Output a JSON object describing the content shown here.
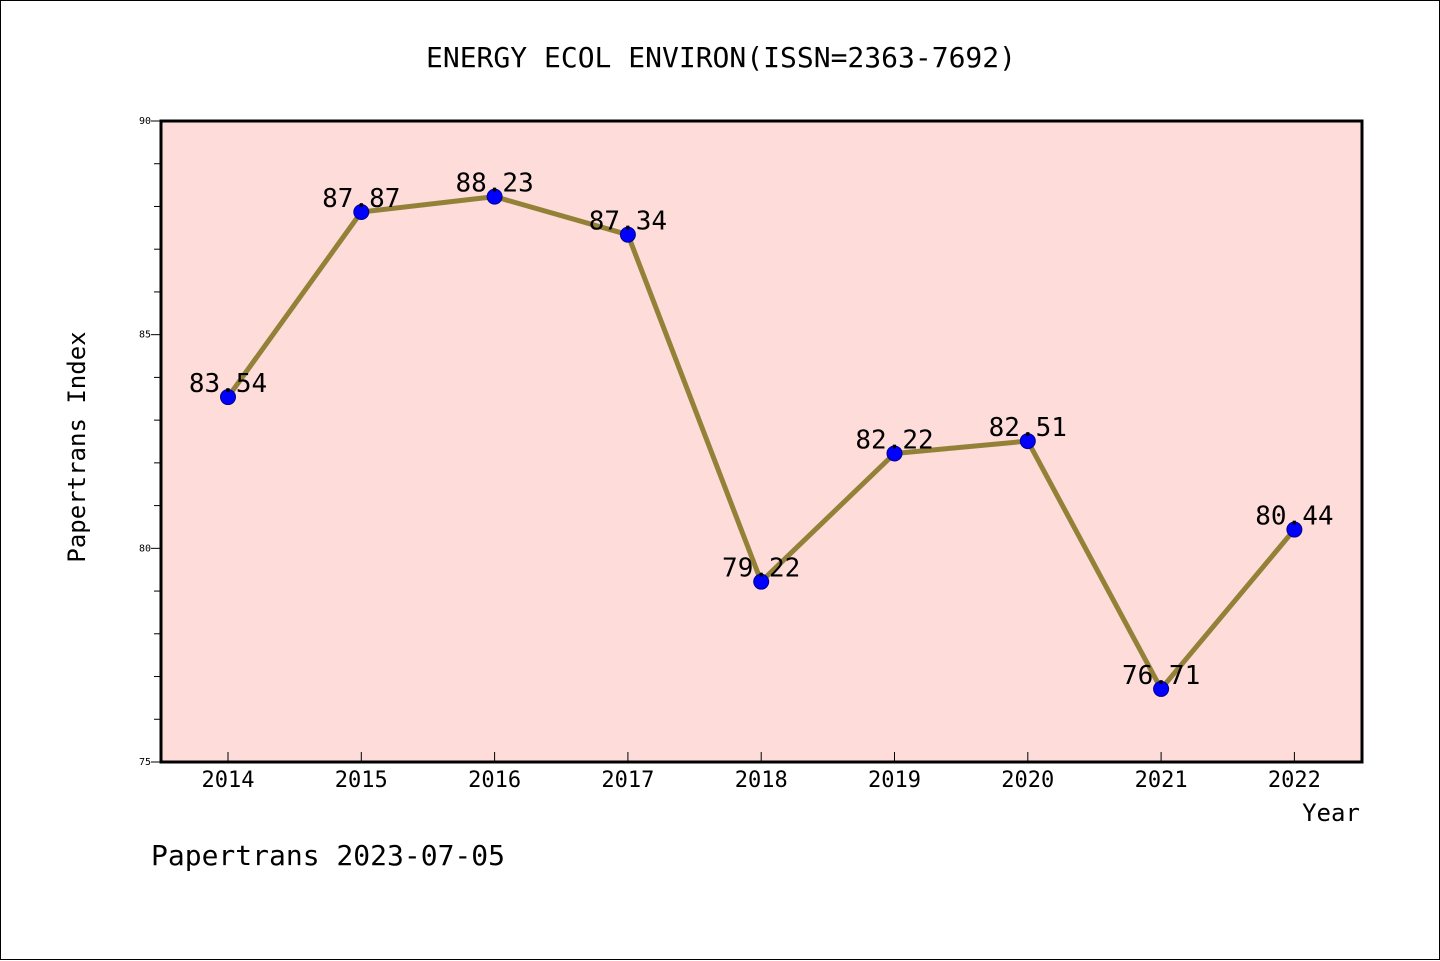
{
  "chart_data": {
    "type": "line",
    "title": "ENERGY ECOL ENVIRON(ISSN=2363-7692)",
    "xlabel": "Year",
    "ylabel": "Papertrans Index",
    "categories": [
      "2014",
      "2015",
      "2016",
      "2017",
      "2018",
      "2019",
      "2020",
      "2021",
      "2022"
    ],
    "series": [
      {
        "values": [
          83.54,
          87.87,
          88.23,
          87.34,
          79.22,
          82.22,
          82.51,
          76.71,
          80.44
        ],
        "labels": [
          "83.54",
          "87.87",
          "88.23",
          "87.34",
          "79.22",
          "82.22",
          "82.51",
          "76.71",
          "80.44"
        ]
      }
    ],
    "ylim": [
      75,
      90
    ],
    "yticks": [
      "75",
      "80",
      "85",
      "90"
    ],
    "grid": false,
    "colors": {
      "plot_background": "#fddcda",
      "line": "#948138",
      "marker": "#0000ff"
    }
  },
  "footer": "Papertrans 2023-07-05"
}
